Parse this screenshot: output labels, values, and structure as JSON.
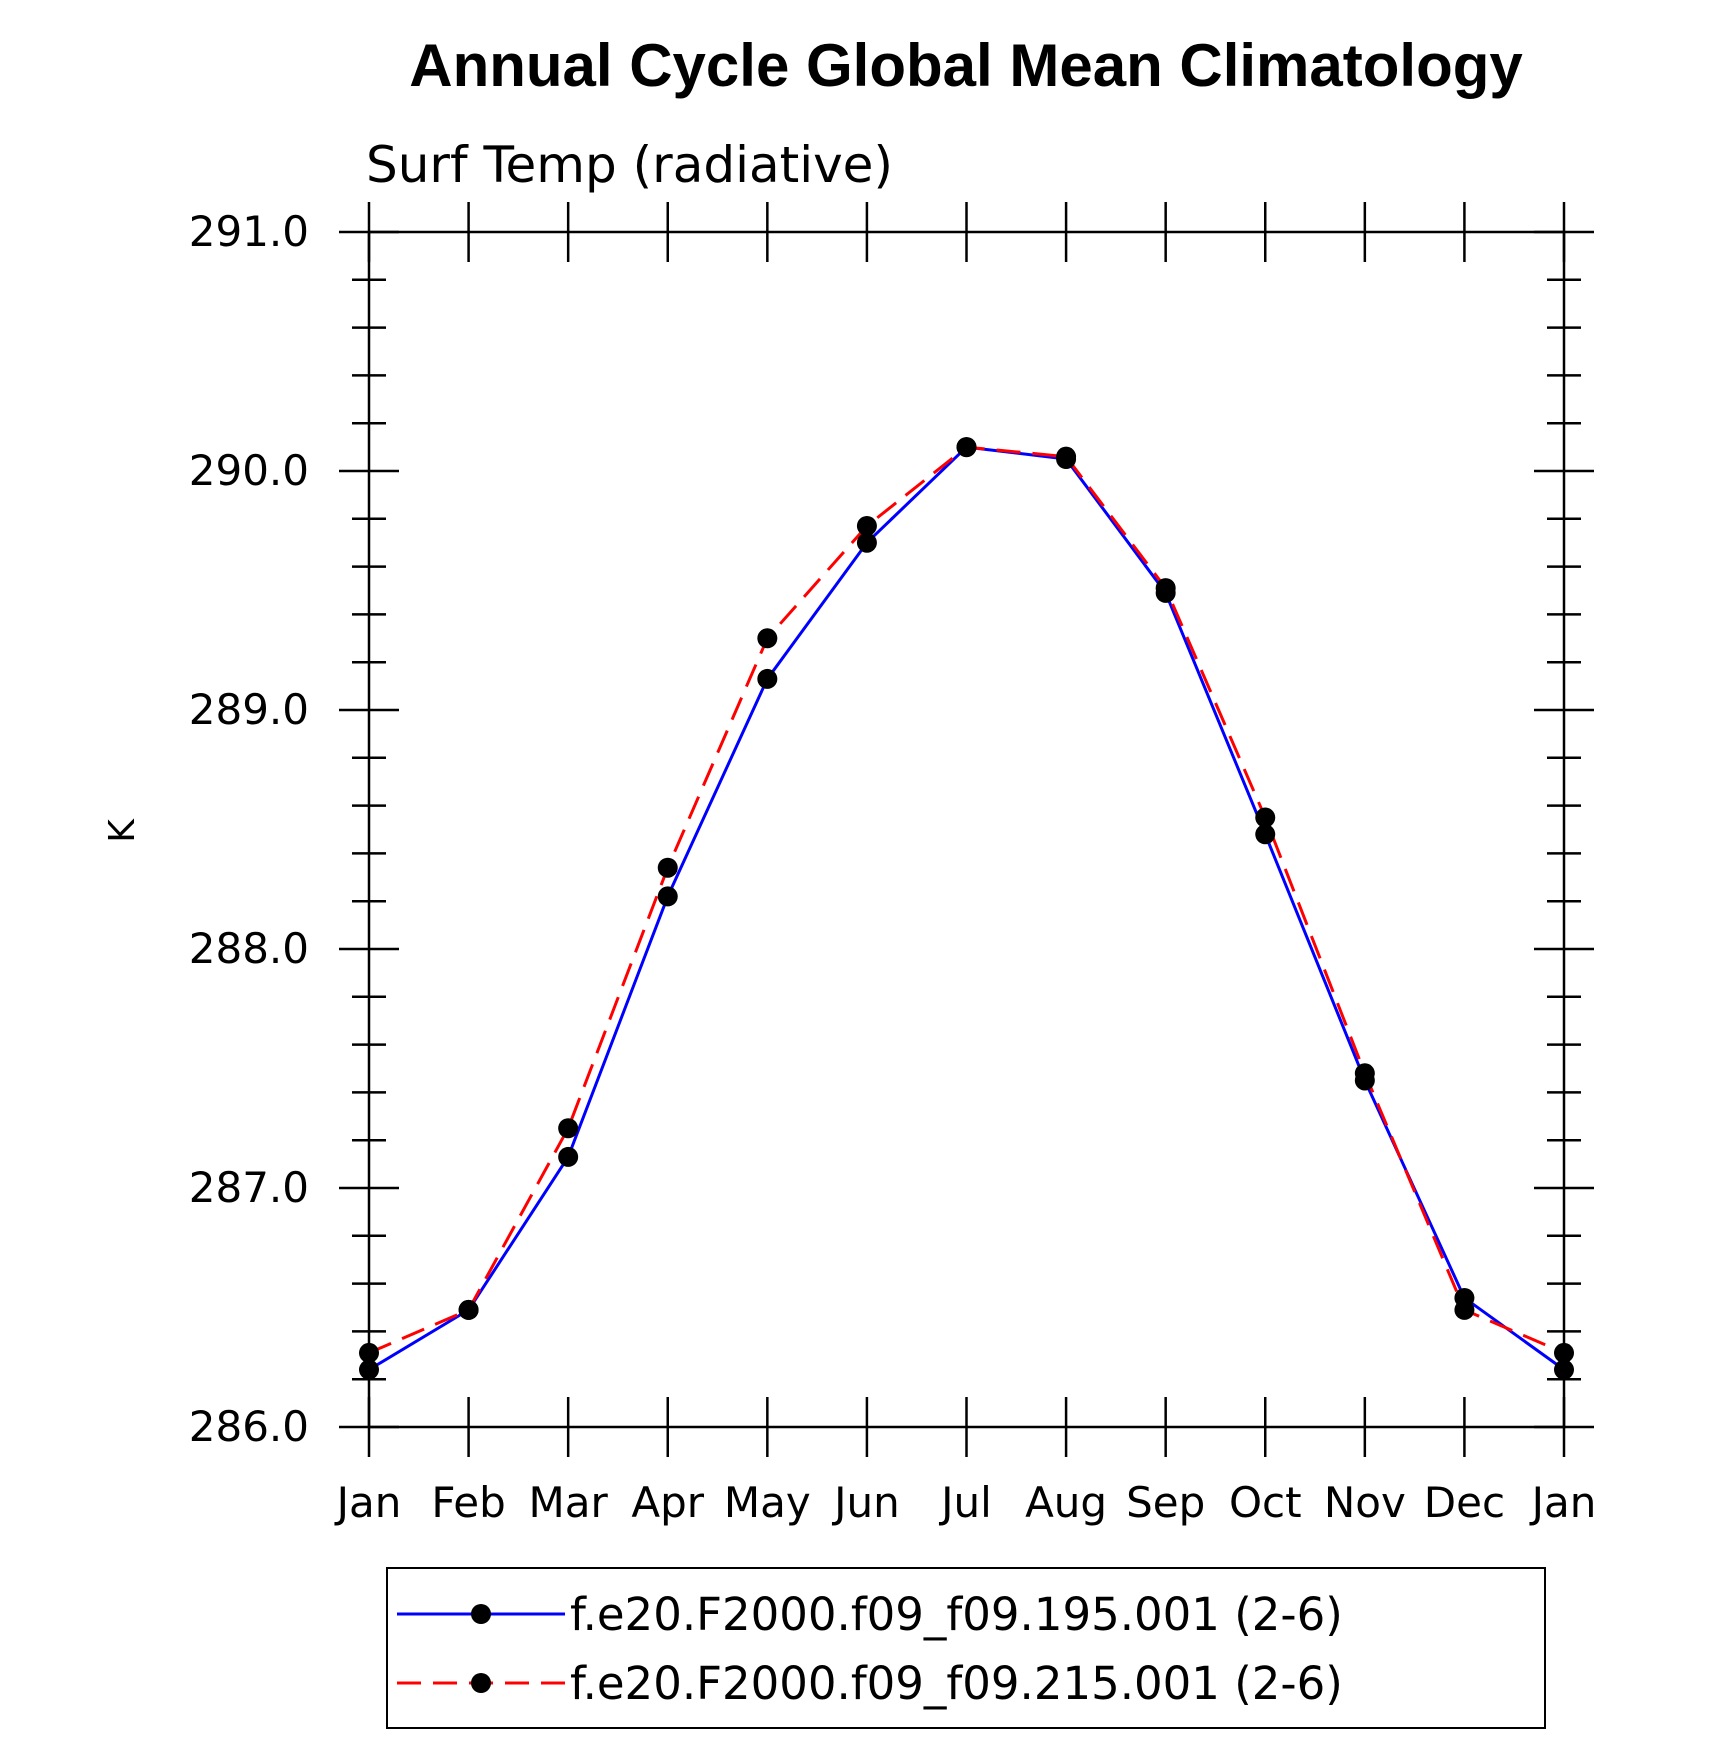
{
  "chart_data": {
    "type": "line",
    "title": "Annual Cycle Global Mean Climatology",
    "subtitle": "Surf Temp (radiative)",
    "xlabel": "",
    "ylabel": "K",
    "categories": [
      "Jan",
      "Feb",
      "Mar",
      "Apr",
      "May",
      "Jun",
      "Jul",
      "Aug",
      "Sep",
      "Oct",
      "Nov",
      "Dec",
      "Jan"
    ],
    "ylim": [
      286.0,
      291.0
    ],
    "y_tick_labels": [
      "286.0",
      "287.0",
      "288.0",
      "289.0",
      "290.0",
      "291.0"
    ],
    "y_tick_values": [
      286.0,
      287.0,
      288.0,
      289.0,
      290.0,
      291.0
    ],
    "series": [
      {
        "name": "f.e20.F2000.f09_f09.195.001 (2-6)",
        "color": "#0000ff",
        "line_style": "solid",
        "marker": "circle",
        "values": [
          286.24,
          286.49,
          287.13,
          288.22,
          289.13,
          289.7,
          290.1,
          290.05,
          289.49,
          288.48,
          287.45,
          286.54,
          286.24
        ]
      },
      {
        "name": "f.e20.F2000.f09_f09.215.001 (2-6)",
        "color": "#ff0000",
        "line_style": "dashed",
        "marker": "circle",
        "values": [
          286.31,
          286.49,
          287.25,
          288.34,
          289.3,
          289.77,
          290.1,
          290.06,
          289.51,
          288.55,
          287.48,
          286.49,
          286.31
        ]
      }
    ],
    "legend_position": "bottom",
    "grid": false
  }
}
